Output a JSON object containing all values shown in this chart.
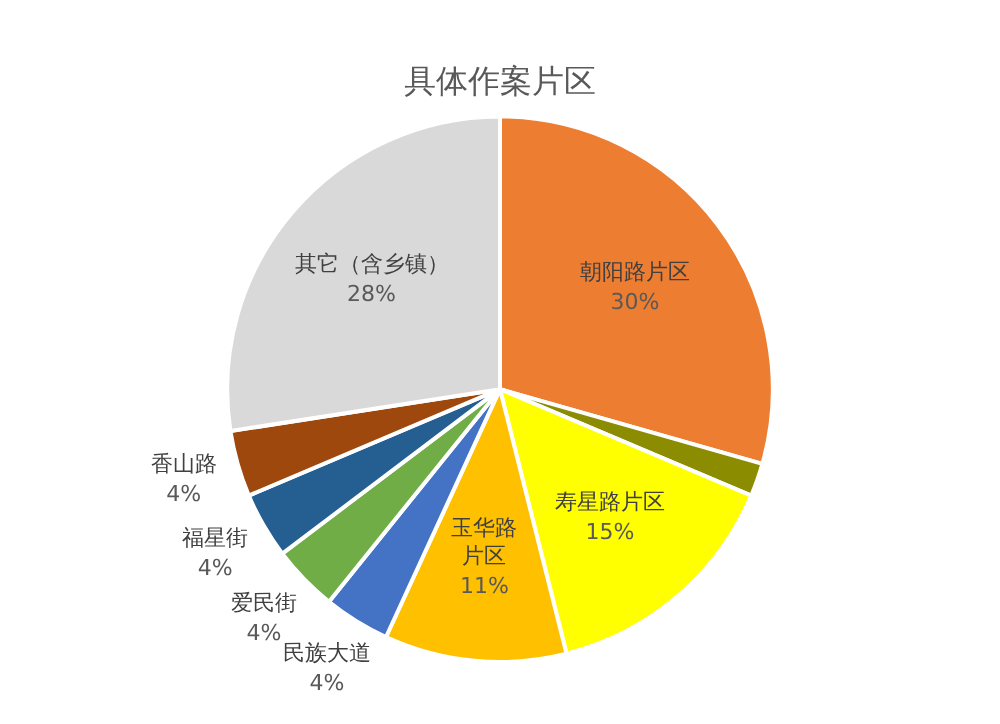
{
  "chart_data": {
    "type": "pie",
    "title": "具体作案片区",
    "categories": [
      "朝阳路片区",
      null,
      "寿星路片区",
      "玉华路片区",
      "民族大道",
      "爱民街",
      "福星街",
      "香山路",
      "其它（含乡镇）"
    ],
    "values": [
      30,
      2,
      15,
      11,
      4,
      4,
      4,
      4,
      28
    ],
    "value_labels": [
      "30%",
      null,
      "15%",
      "11%",
      "4%",
      "4%",
      "4%",
      "4%",
      "28%"
    ],
    "colors": [
      "#ed7d31",
      "#8c8c00",
      "#ffff00",
      "#ffc000",
      "#4472c4",
      "#70ad47",
      "#255e91",
      "#9e480e",
      "#d9d9d9"
    ],
    "legend": false
  }
}
